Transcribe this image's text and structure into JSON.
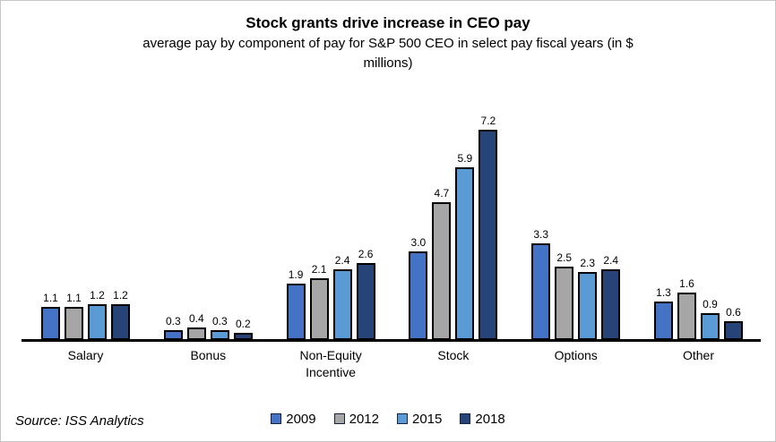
{
  "window": {
    "background": "#ffffff",
    "border_color": "#c6c6c6"
  },
  "chart_data": {
    "type": "bar",
    "title": "Stock grants drive increase in CEO pay",
    "subtitle": "average pay by component of pay for S&P 500 CEO in select pay fiscal years (in $ millions)",
    "categories": [
      "Salary",
      "Bonus",
      "Non-Equity Incentive",
      "Stock",
      "Options",
      "Other"
    ],
    "series": [
      {
        "name": "2009",
        "color": "#4472C4",
        "values": [
          1.1,
          0.3,
          1.9,
          3.0,
          3.3,
          1.3
        ]
      },
      {
        "name": "2012",
        "color": "#A6A6A6",
        "values": [
          1.1,
          0.4,
          2.1,
          4.7,
          2.5,
          1.6
        ]
      },
      {
        "name": "2015",
        "color": "#5B9BD5",
        "values": [
          1.2,
          0.3,
          2.4,
          5.9,
          2.3,
          0.9
        ]
      },
      {
        "name": "2018",
        "color": "#264478",
        "values": [
          1.2,
          0.2,
          2.6,
          7.2,
          2.4,
          0.6
        ]
      }
    ],
    "ylim": [
      0,
      8
    ],
    "y_axis_visible": false,
    "grid": false,
    "data_labels": true,
    "data_label_decimals": 1,
    "bar_border_color": "#000000",
    "legend_position": "bottom"
  },
  "source_note": "Source: ISS Analytics"
}
